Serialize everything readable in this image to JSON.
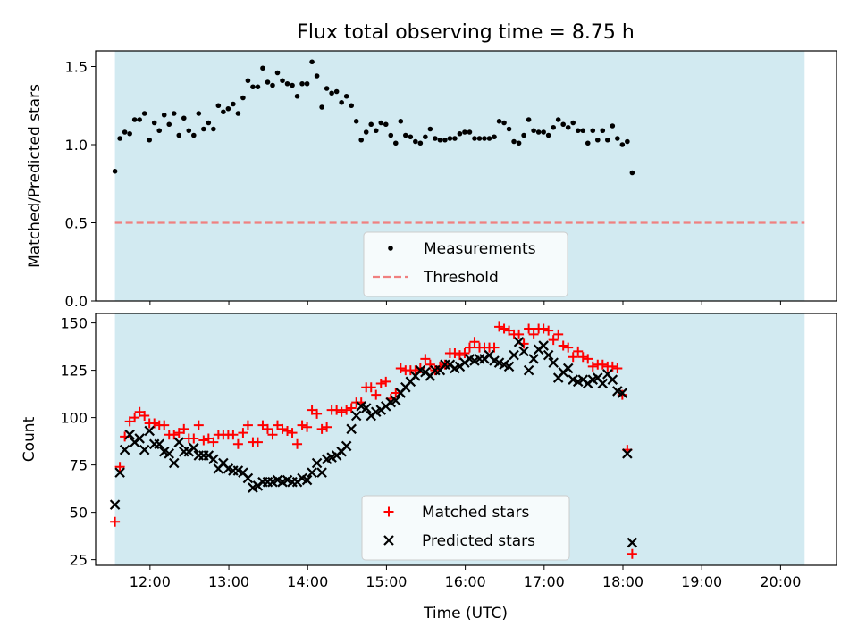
{
  "chart_data": [
    {
      "type": "scatter",
      "title": "Flux total observing time = 8.75 h",
      "xlabel": "",
      "ylabel": "Matched/Predicted stars",
      "xlim": [
        11.31,
        20.71
      ],
      "ylim": [
        0,
        1.6
      ],
      "yticks": [
        0,
        0.5,
        1.0,
        1.5
      ],
      "ytick_labels": [
        "0.0",
        "0.5",
        "1.0",
        "1.5"
      ],
      "shaded_interval": [
        11.555,
        20.305
      ],
      "shaded_color": "#add8e6",
      "grid": false,
      "legend_location": "lower center",
      "series": [
        {
          "name": "Measurements",
          "color": "#000000",
          "marker": "dot",
          "x_start": 11.555,
          "x_step": 0.0625,
          "y": [
            0.83,
            1.04,
            1.08,
            1.07,
            1.16,
            1.16,
            1.2,
            1.03,
            1.14,
            1.09,
            1.19,
            1.13,
            1.2,
            1.06,
            1.17,
            1.09,
            1.06,
            1.2,
            1.1,
            1.14,
            1.1,
            1.25,
            1.21,
            1.23,
            1.26,
            1.2,
            1.3,
            1.41,
            1.37,
            1.37,
            1.49,
            1.4,
            1.38,
            1.46,
            1.41,
            1.39,
            1.38,
            1.31,
            1.39,
            1.39,
            1.53,
            1.44,
            1.24,
            1.36,
            1.33,
            1.34,
            1.27,
            1.31,
            1.25,
            1.15,
            1.03,
            1.08,
            1.13,
            1.09,
            1.14,
            1.13,
            1.06,
            1.01,
            1.15,
            1.06,
            1.05,
            1.02,
            1.01,
            1.05,
            1.1,
            1.04,
            1.03,
            1.03,
            1.04,
            1.04,
            1.07,
            1.08,
            1.08,
            1.04,
            1.04,
            1.04,
            1.04,
            1.05,
            1.15,
            1.14,
            1.1,
            1.02,
            1.01,
            1.06,
            1.16,
            1.09,
            1.08,
            1.08,
            1.06,
            1.11,
            1.16,
            1.13,
            1.11,
            1.14,
            1.09,
            1.09,
            1.01,
            1.09,
            1.03,
            1.09,
            1.03,
            1.12,
            1.04,
            1.0,
            1.02,
            0.82
          ]
        },
        {
          "name": "Threshold",
          "color": "#f08080",
          "marker": "dashed-line",
          "y": 0.5,
          "x_range": [
            11.555,
            20.305
          ]
        }
      ]
    },
    {
      "type": "scatter",
      "title": "",
      "xlabel": "Time (UTC)",
      "ylabel": "Count",
      "xlim": [
        11.31,
        20.71
      ],
      "ylim": [
        22,
        155
      ],
      "yticks": [
        25,
        50,
        75,
        100,
        125,
        150
      ],
      "xticks": [
        12,
        13,
        14,
        15,
        16,
        17,
        18,
        19,
        20
      ],
      "xtick_labels": [
        "12:00",
        "13:00",
        "14:00",
        "15:00",
        "16:00",
        "17:00",
        "18:00",
        "19:00",
        "20:00"
      ],
      "shaded_interval": [
        11.555,
        20.305
      ],
      "shaded_color": "#add8e6",
      "grid": false,
      "legend_location": "lower center",
      "series": [
        {
          "name": "Matched stars",
          "color": "#ff0000",
          "marker": "plus",
          "x_start": 11.555,
          "x_step": 0.0625,
          "y": [
            45,
            74,
            90,
            98,
            100,
            103,
            101,
            97,
            97,
            96,
            96,
            91,
            91,
            92,
            94,
            89,
            89,
            96,
            88,
            89,
            87,
            91,
            91,
            91,
            91,
            86,
            92,
            96,
            87,
            87,
            96,
            94,
            91,
            96,
            94,
            93,
            92,
            86,
            96,
            95,
            104,
            102,
            94,
            95,
            104,
            104,
            103,
            104,
            105,
            108,
            108,
            116,
            116,
            112,
            118,
            119,
            110,
            113,
            126,
            125,
            125,
            125,
            126,
            131,
            128,
            125,
            127,
            128,
            134,
            134,
            133,
            134,
            137,
            140,
            137,
            137,
            137,
            137,
            148,
            147,
            146,
            144,
            144,
            139,
            147,
            144,
            147,
            147,
            146,
            141,
            144,
            138,
            137,
            132,
            135,
            132,
            131,
            127,
            128,
            128,
            127,
            127,
            126,
            112,
            83,
            28
          ]
        },
        {
          "name": "Predicted stars",
          "color": "#000000",
          "marker": "x",
          "x_start": 11.555,
          "x_step": 0.0625,
          "y": [
            54,
            71,
            83,
            91,
            87,
            89,
            83,
            93,
            86,
            86,
            82,
            81,
            76,
            87,
            82,
            82,
            84,
            80,
            80,
            80,
            78,
            73,
            76,
            73,
            72,
            72,
            71,
            68,
            63,
            64,
            66,
            66,
            66,
            67,
            66,
            67,
            66,
            66,
            68,
            67,
            71,
            76,
            71,
            78,
            79,
            80,
            82,
            85,
            94,
            101,
            106,
            105,
            101,
            103,
            104,
            106,
            108,
            109,
            113,
            116,
            119,
            122,
            125,
            124,
            122,
            125,
            125,
            128,
            128,
            126,
            127,
            129,
            131,
            130,
            131,
            131,
            133,
            130,
            129,
            128,
            127,
            133,
            140,
            135,
            125,
            131,
            136,
            138,
            133,
            129,
            121,
            124,
            126,
            120,
            119,
            120,
            118,
            120,
            121,
            118,
            123,
            120,
            114,
            113,
            81,
            34
          ]
        }
      ]
    }
  ]
}
